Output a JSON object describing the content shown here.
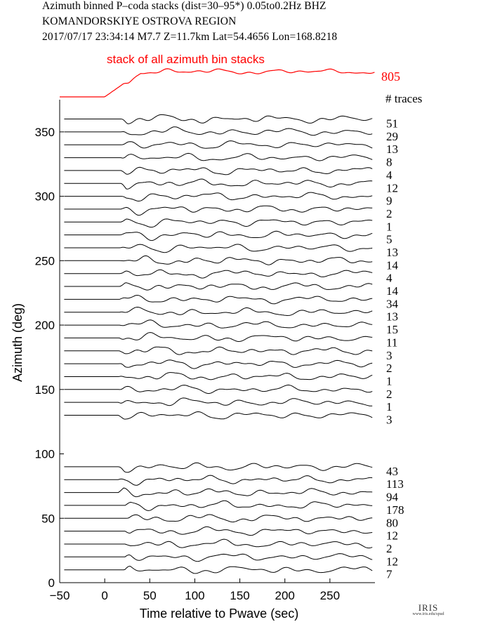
{
  "header": {
    "line1": "Azimuth binned P–coda stacks (dist=30–95*)  0.05to0.2Hz  BHZ",
    "line2": "KOMANDORSKIYE OSTROVA REGION",
    "line3": "2017/07/17  23:34:14  M7.7  Z=11.7km Lat=54.4656 Lon=168.8218"
  },
  "colors": {
    "stack": "#ff0000",
    "traces": "#000000",
    "axes": "#000000"
  },
  "logo": {
    "brand": "IRIS",
    "url": "www.iris.edu/spud"
  },
  "chart_data": {
    "type": "line",
    "title": "",
    "xlabel": "Time relative to Pwave (sec)",
    "ylabel": "Azimuth (deg)",
    "xlim": [
      -50,
      300
    ],
    "ylim": [
      0,
      375
    ],
    "xticks": [
      -50,
      0,
      50,
      100,
      150,
      200,
      250
    ],
    "yticks": [
      0,
      50,
      100,
      150,
      200,
      250,
      300,
      350
    ],
    "stack": {
      "label": "stack of all azimuth bin stacks",
      "count": "805"
    },
    "count_header": "# traces",
    "series": [
      {
        "azimuth": 360,
        "count": "51"
      },
      {
        "azimuth": 350,
        "count": "29"
      },
      {
        "azimuth": 340,
        "count": "13"
      },
      {
        "azimuth": 330,
        "count": "8"
      },
      {
        "azimuth": 320,
        "count": "4"
      },
      {
        "azimuth": 310,
        "count": "12"
      },
      {
        "azimuth": 300,
        "count": "9"
      },
      {
        "azimuth": 290,
        "count": "2"
      },
      {
        "azimuth": 280,
        "count": "1"
      },
      {
        "azimuth": 270,
        "count": "5"
      },
      {
        "azimuth": 260,
        "count": "13"
      },
      {
        "azimuth": 250,
        "count": "14"
      },
      {
        "azimuth": 240,
        "count": "4"
      },
      {
        "azimuth": 230,
        "count": "14"
      },
      {
        "azimuth": 220,
        "count": "34"
      },
      {
        "azimuth": 210,
        "count": "13"
      },
      {
        "azimuth": 200,
        "count": "15"
      },
      {
        "azimuth": 190,
        "count": "11"
      },
      {
        "azimuth": 180,
        "count": "3"
      },
      {
        "azimuth": 170,
        "count": "2"
      },
      {
        "azimuth": 160,
        "count": "1"
      },
      {
        "azimuth": 150,
        "count": "2"
      },
      {
        "azimuth": 140,
        "count": "1"
      },
      {
        "azimuth": 130,
        "count": "3"
      },
      {
        "azimuth": 90,
        "count": "43"
      },
      {
        "azimuth": 80,
        "count": "113"
      },
      {
        "azimuth": 70,
        "count": "94"
      },
      {
        "azimuth": 60,
        "count": "178"
      },
      {
        "azimuth": 50,
        "count": "80"
      },
      {
        "azimuth": 40,
        "count": "12"
      },
      {
        "azimuth": 30,
        "count": "2"
      },
      {
        "azimuth": 20,
        "count": "12"
      },
      {
        "azimuth": 10,
        "count": "7"
      }
    ]
  }
}
